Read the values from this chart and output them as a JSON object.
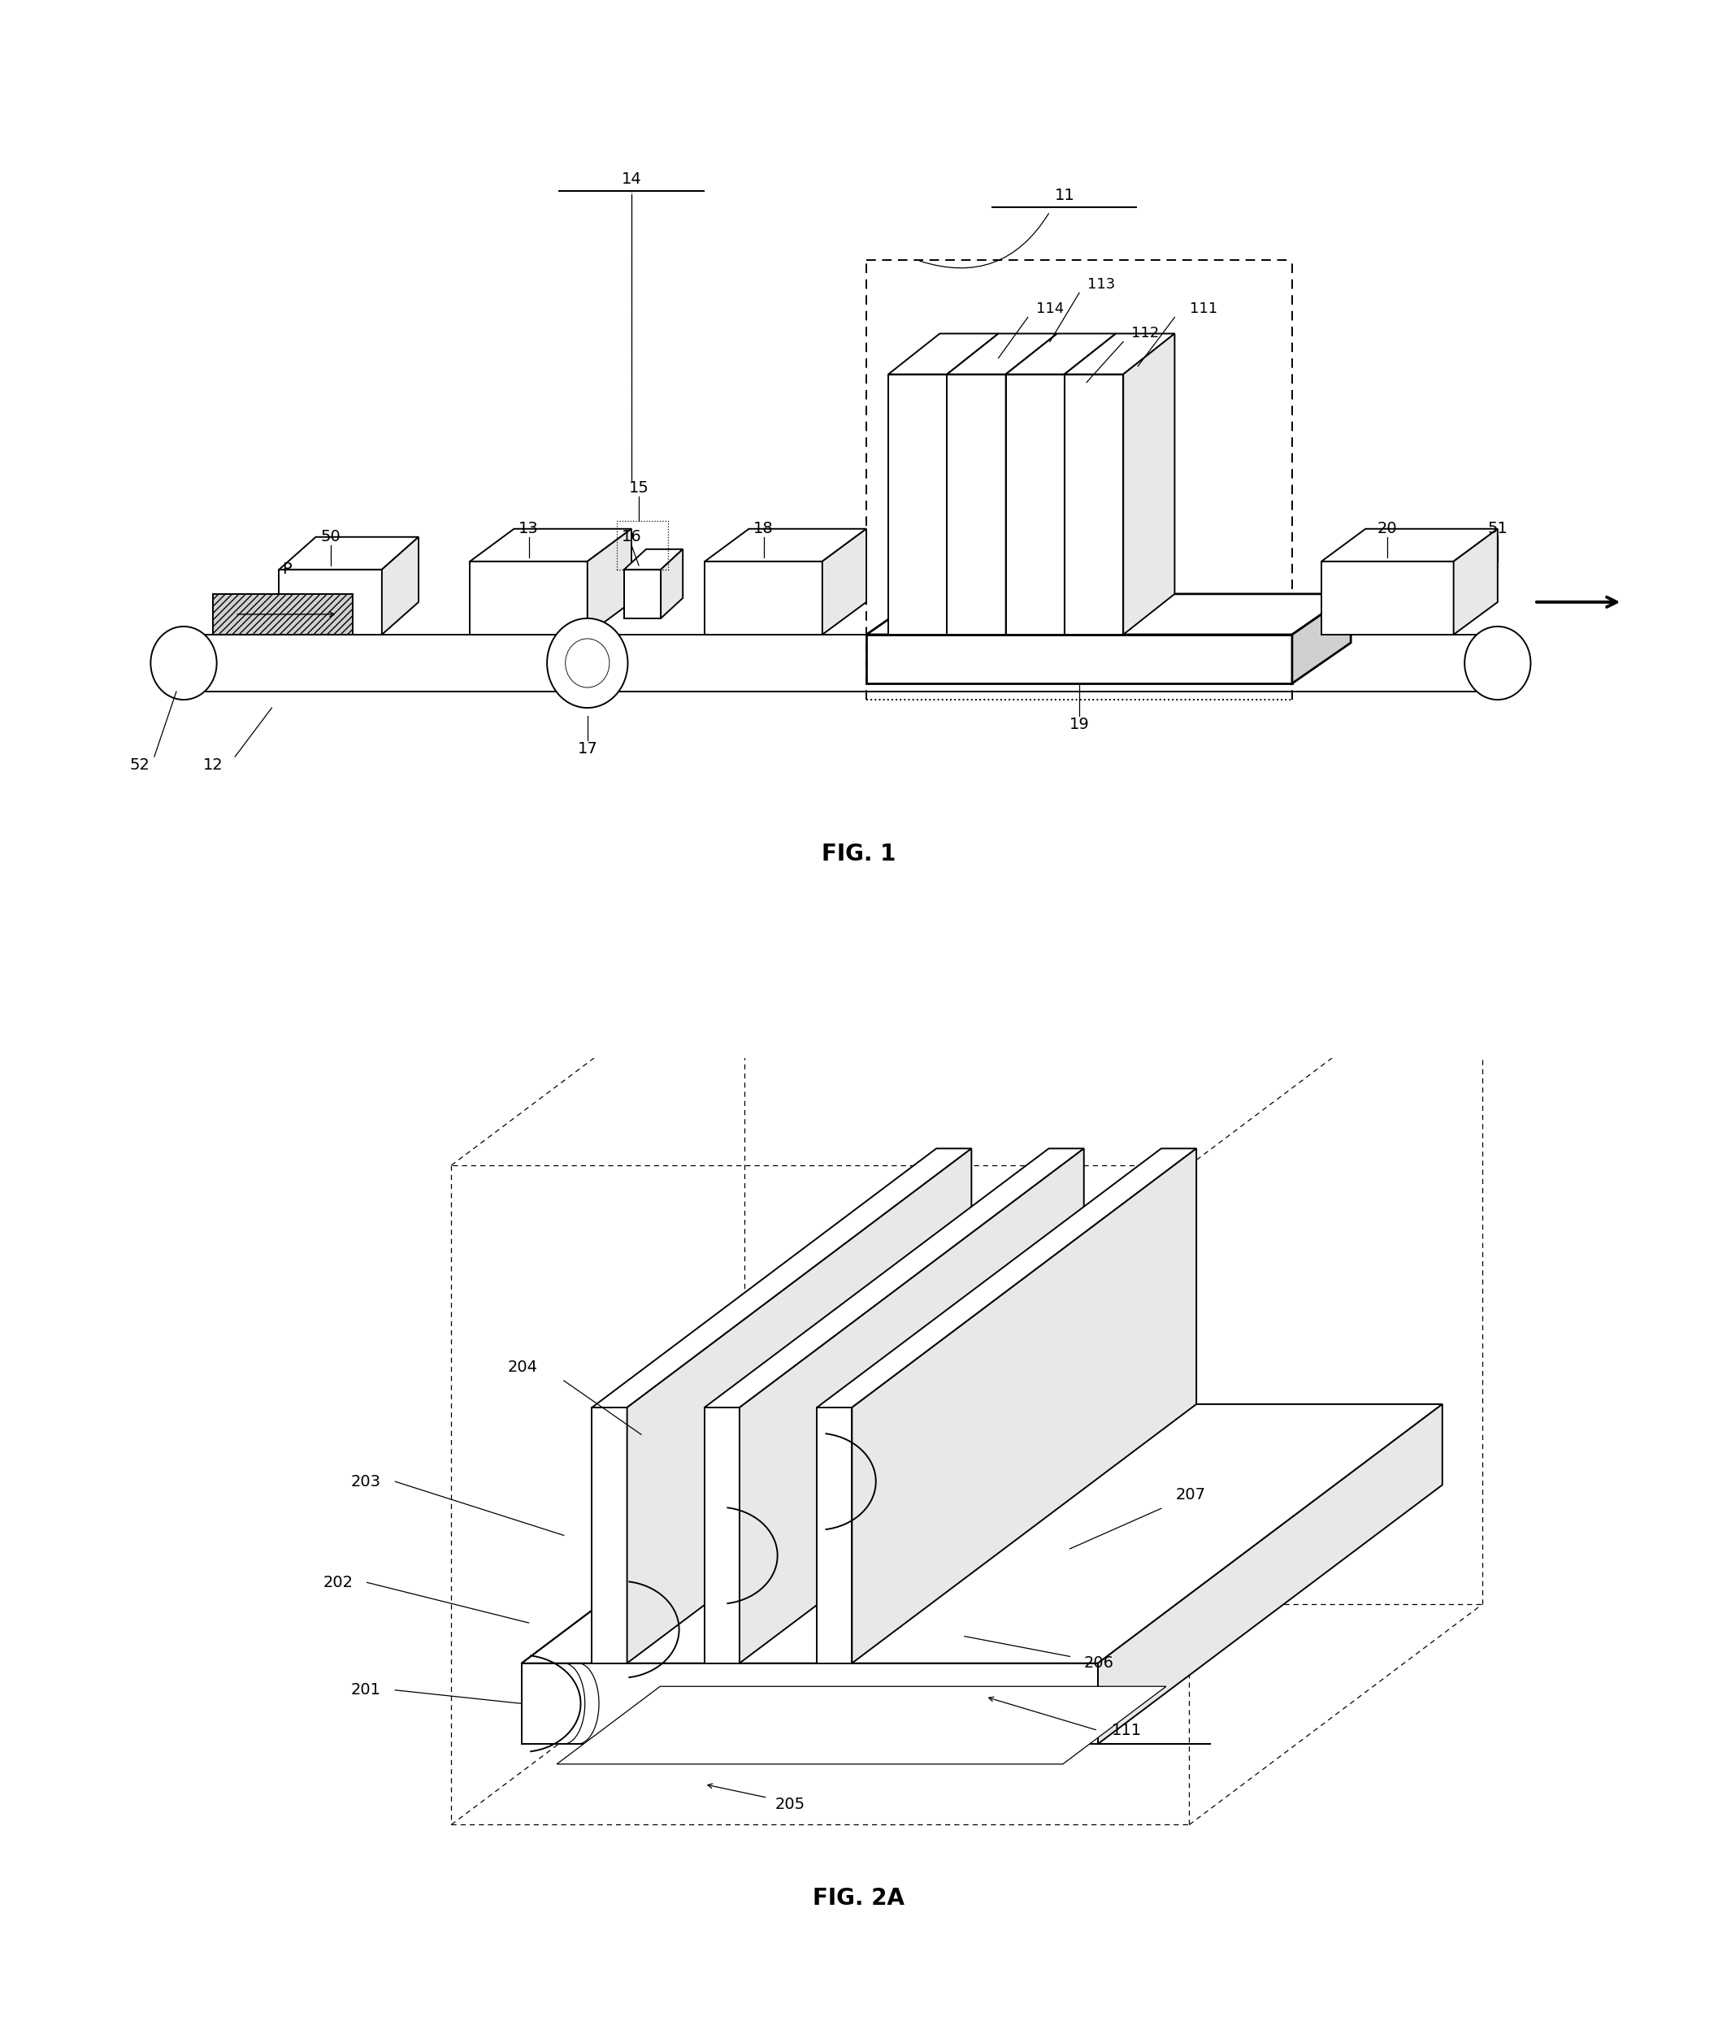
{
  "fig_width": 21.14,
  "fig_height": 25.03,
  "bg_color": "#ffffff",
  "line_color": "#000000",
  "fig1_title": "FIG. 1",
  "fig2_title": "FIG. 2A",
  "font_size_label": 14,
  "font_size_title": 20,
  "lw_main": 1.4,
  "lw_thin": 0.9,
  "lw_thick": 2.2,
  "gray_light": "#e8e8e8",
  "gray_mid": "#d0d0d0",
  "gray_dark": "#b0b0b0",
  "hatch_gray": "#c8c8c8"
}
